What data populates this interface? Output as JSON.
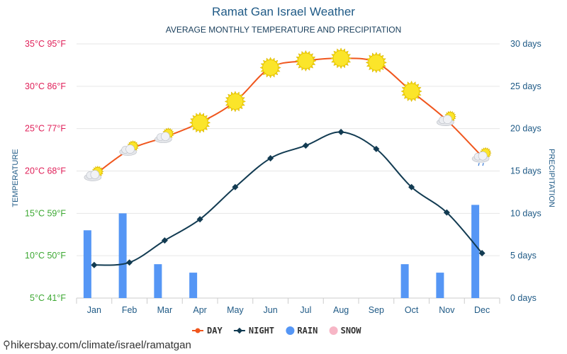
{
  "header": {
    "title": "Ramat Gan Israel Weather",
    "subtitle": "AVERAGE MONTHLY TEMPERATURE AND PRECIPITATION"
  },
  "source": "hikersbay.com/climate/israel/ramatgan",
  "colors": {
    "day": "#f0561d",
    "night": "#123b52",
    "rain": "#5596f5",
    "snow": "#f7b6c6",
    "grid": "#e6e6e6",
    "warm_ticks": "#e0215a",
    "cool_ticks": "#3ca832",
    "right_ticks": "#1f5a86"
  },
  "chart_data": {
    "type": "line",
    "title": "Ramat Gan Israel Weather",
    "subtitle": "AVERAGE MONTHLY TEMPERATURE AND PRECIPITATION",
    "categories": [
      "Jan",
      "Feb",
      "Mar",
      "Apr",
      "May",
      "Jun",
      "Jul",
      "Aug",
      "Sep",
      "Oct",
      "Nov",
      "Dec"
    ],
    "y_left": {
      "label": "TEMPERATURE",
      "unit": "°C",
      "range": [
        5,
        35
      ],
      "ticks": [
        "5°C 41°F",
        "10°C 50°F",
        "15°C 59°F",
        "20°C 68°F",
        "25°C 77°F",
        "30°C 86°F",
        "35°C 95°F"
      ]
    },
    "y_right": {
      "label": "PRECIPITATION",
      "unit": "days",
      "range": [
        0,
        30
      ],
      "ticks": [
        "0 days",
        "5 days",
        "10 days",
        "15 days",
        "20 days",
        "25 days",
        "30 days"
      ]
    },
    "series": [
      {
        "name": "DAY",
        "type": "line",
        "axis": "left",
        "values": [
          19.5,
          22.5,
          24,
          25.7,
          28.2,
          32.2,
          33,
          33.3,
          32.8,
          29.4,
          26,
          21.7
        ],
        "icons": [
          "partly-cloudy-icon",
          "partly-cloudy-icon",
          "partly-cloudy-icon",
          "sun-icon",
          "sun-icon",
          "sun-icon",
          "sun-icon",
          "sun-icon",
          "sun-icon",
          "sun-icon",
          "partly-cloudy-icon",
          "cloud-rain-icon"
        ]
      },
      {
        "name": "NIGHT",
        "type": "line",
        "axis": "left",
        "values": [
          8.9,
          9.2,
          11.8,
          14.3,
          18.1,
          21.5,
          23,
          24.6,
          22.6,
          18.1,
          15.1,
          10.3
        ]
      },
      {
        "name": "RAIN",
        "type": "bar",
        "axis": "right",
        "values": [
          8,
          10,
          4,
          3,
          0,
          0,
          0,
          0,
          0,
          4,
          3,
          11
        ]
      },
      {
        "name": "SNOW",
        "type": "bar",
        "axis": "right",
        "values": [
          0,
          0,
          0,
          0,
          0,
          0,
          0,
          0,
          0,
          0,
          0,
          0
        ]
      }
    ],
    "grid": true,
    "legend": "bottom-center"
  }
}
